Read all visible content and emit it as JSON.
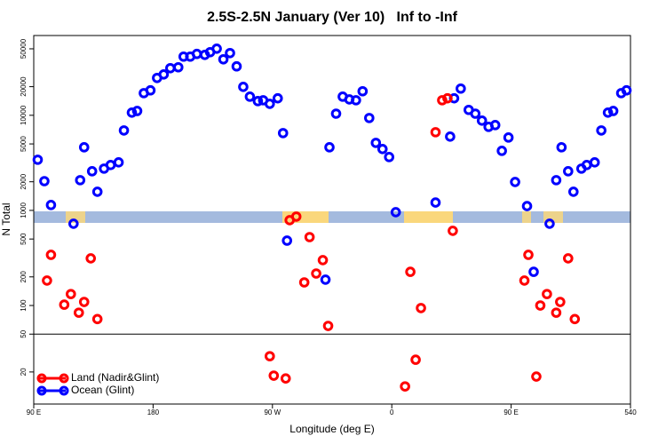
{
  "chart_data": {
    "type": "scatter",
    "title": "2.5S-2.5N January (Ver 10)   Inf to -Inf",
    "x_label": "Longitude (deg E)",
    "y_label": "N Total",
    "log_y": true,
    "legend_position": "bottom-left",
    "xlim": [
      90,
      540
    ],
    "ylim": [
      9.2,
      69000
    ],
    "xticks": [
      {
        "value": 90,
        "label": "90 E"
      },
      180,
      {
        "value": 270,
        "label": "90 W"
      },
      {
        "value": 360,
        "label": "0"
      },
      {
        "value": 450,
        "label": "90 E"
      },
      540
    ],
    "yticks": [
      20,
      50,
      100,
      200,
      500,
      1000,
      2000,
      5000,
      10000,
      20000,
      50000
    ],
    "hline": 50,
    "series": [
      {
        "name": "Land (Nadir&Glint)",
        "color": "#ff0000",
        "x": [
          100,
          103,
          113,
          118,
          124,
          128,
          133,
          138,
          268,
          271,
          280,
          283,
          288,
          294,
          298,
          303,
          308,
          312,
          370,
          374,
          378,
          382,
          393,
          398,
          402,
          406,
          460,
          463,
          472,
          477,
          484,
          487,
          493,
          498,
          469
        ],
        "values": [
          183,
          341,
          102,
          132,
          84,
          109,
          313,
          72,
          29.3,
          18.3,
          17.1,
          789,
          861,
          175,
          524,
          217,
          300,
          61,
          14.1,
          226,
          26.9,
          94,
          6640,
          14400,
          15100,
          610,
          183,
          341,
          100,
          132,
          84,
          109,
          313,
          72,
          17.9
        ]
      },
      {
        "name": "Ocean (Glint)",
        "color": "#0000ff",
        "x": [
          93,
          98,
          103,
          120,
          125,
          128,
          134,
          138,
          143,
          148,
          154,
          158,
          164,
          168,
          173,
          178,
          183,
          188,
          193,
          199,
          203,
          208,
          213,
          219,
          223,
          228,
          233,
          238,
          243,
          248,
          253,
          259,
          263,
          268,
          274,
          278,
          281,
          310,
          313,
          318,
          323,
          328,
          333,
          338,
          343,
          348,
          353,
          358,
          363,
          393,
          404,
          407,
          412,
          418,
          423,
          428,
          433,
          438,
          443,
          448,
          453,
          462,
          467,
          479,
          484,
          488,
          493,
          497,
          503,
          507,
          513,
          518,
          523,
          527,
          533,
          537
        ],
        "values": [
          3410,
          2030,
          1140,
          724,
          2080,
          4610,
          2580,
          1570,
          2750,
          3000,
          3200,
          6930,
          10670,
          11100,
          17100,
          18300,
          24700,
          26900,
          31300,
          32000,
          41400,
          41400,
          44200,
          43200,
          46100,
          50200,
          38800,
          45100,
          32700,
          19900,
          15700,
          14100,
          14400,
          13200,
          15100,
          6500,
          481,
          187,
          4610,
          10400,
          15700,
          14700,
          14400,
          17900,
          9370,
          5130,
          4420,
          3640,
          958,
          1210,
          5970,
          15100,
          19100,
          11400,
          10400,
          8790,
          7560,
          7890,
          4230,
          5840,
          1990,
          1110,
          226,
          724,
          2080,
          4610,
          2580,
          1570,
          2750,
          3000,
          3200,
          6930,
          10670,
          11100,
          17100,
          18300
        ]
      }
    ]
  }
}
